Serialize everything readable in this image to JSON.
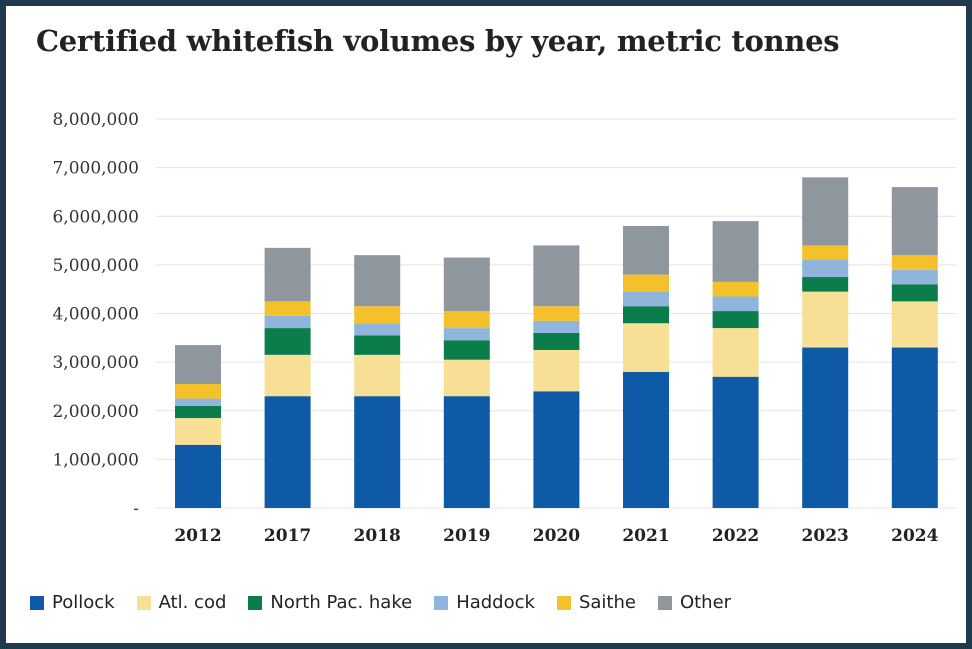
{
  "colors": {
    "Pollock": "#0e5aa7",
    "Atl. cod": "#f7df95",
    "North Pac. hake": "#0a7d4a",
    "Haddock": "#8fb5dd",
    "Saithe": "#f5c12a",
    "Other": "#8f969e",
    "gridline": "#e4e4e4"
  },
  "chart_data": {
    "type": "bar",
    "stacked": true,
    "title": "Certified whitefish volumes by year, metric tonnes",
    "xlabel": "",
    "ylabel": "",
    "ylim": [
      0,
      8000000
    ],
    "y_ticks": [
      0,
      1000000,
      2000000,
      3000000,
      4000000,
      5000000,
      6000000,
      7000000,
      8000000
    ],
    "y_tick_labels": [
      "-",
      "1,000,000",
      "2,000,000",
      "3,000,000",
      "4,000,000",
      "5,000,000",
      "6,000,000",
      "7,000,000",
      "8,000,000"
    ],
    "grid": true,
    "legend_position": "bottom",
    "categories": [
      "2012",
      "2017",
      "2018",
      "2019",
      "2020",
      "2021",
      "2022",
      "2023",
      "2024"
    ],
    "series": [
      {
        "name": "Pollock",
        "values": [
          1300000,
          2300000,
          2300000,
          2300000,
          2400000,
          2800000,
          2700000,
          3300000,
          3300000
        ]
      },
      {
        "name": "Atl. cod",
        "values": [
          550000,
          850000,
          850000,
          750000,
          850000,
          1000000,
          1000000,
          1150000,
          950000
        ]
      },
      {
        "name": "North Pac. hake",
        "values": [
          250000,
          550000,
          400000,
          400000,
          350000,
          350000,
          350000,
          300000,
          350000
        ]
      },
      {
        "name": "Haddock",
        "values": [
          150000,
          250000,
          250000,
          250000,
          250000,
          300000,
          300000,
          350000,
          300000
        ]
      },
      {
        "name": "Saithe",
        "values": [
          300000,
          300000,
          350000,
          350000,
          300000,
          350000,
          300000,
          300000,
          300000
        ]
      },
      {
        "name": "Other",
        "values": [
          800000,
          1100000,
          1050000,
          1100000,
          1250000,
          1000000,
          1250000,
          1400000,
          1400000
        ]
      }
    ]
  }
}
